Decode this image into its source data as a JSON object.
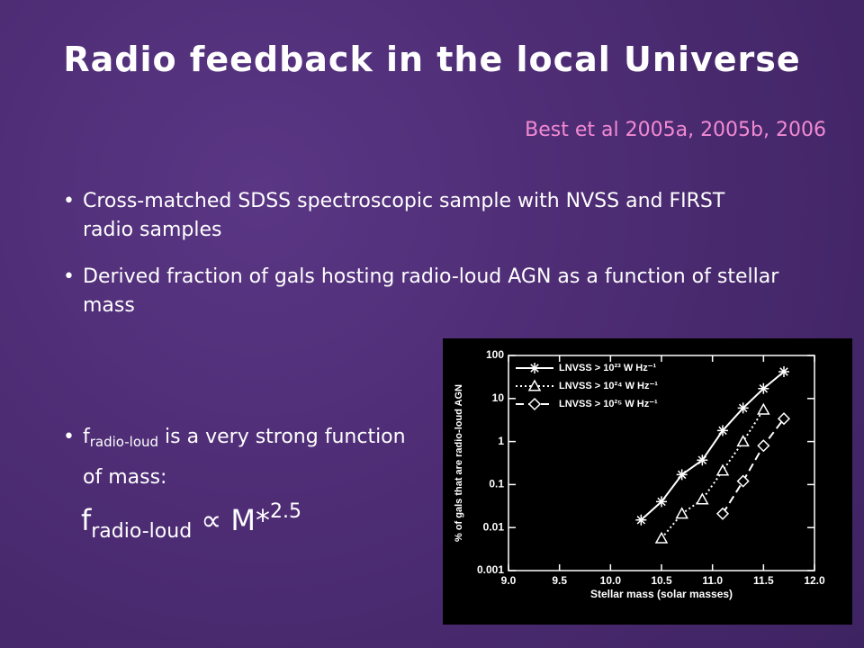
{
  "slide": {
    "title": "Radio feedback in the local Universe",
    "citation": "Best et al 2005a, 2005b, 2006",
    "bullets": [
      "Cross-matched SDSS spectroscopic sample with NVSS and FIRST radio samples",
      "Derived fraction of gals hosting radio-loud AGN as a function of stellar mass"
    ],
    "bullet3": {
      "symbol": "f",
      "subscript": "radio-loud",
      "text": "is a very strong function of mass:"
    },
    "formula": {
      "symbol": "f",
      "subscript": "radio-loud",
      "relation": "∝",
      "mass": "M",
      "star": "*",
      "exponent": "2.5"
    }
  },
  "chart_data": {
    "type": "line",
    "xlabel": "Stellar mass (solar masses)",
    "ylabel": "% of gals that are radio-loud AGN",
    "xlim": [
      9.0,
      12.0
    ],
    "xticks": [
      {
        "value": 9,
        "label": "9.0"
      },
      {
        "value": 9.5,
        "label": "9.5"
      },
      {
        "value": 10,
        "label": "10.0"
      },
      {
        "value": 10.5,
        "label": "10.5"
      },
      {
        "value": 11,
        "label": "11.0"
      },
      {
        "value": 11.5,
        "label": "11.5"
      },
      {
        "value": 12,
        "label": "12.0"
      }
    ],
    "ylim": [
      0.001,
      100
    ],
    "yticks": [
      0.001,
      0.01,
      0.1,
      1,
      10,
      100
    ],
    "log_y": true,
    "legend": "upper left",
    "color": "#ffffff",
    "series": [
      {
        "name": "LNVSS > 10²³ W Hz⁻¹",
        "marker": "asterisk",
        "dash": "solid",
        "x": [
          10.3,
          10.5,
          10.7,
          10.9,
          11.1,
          11.3,
          11.5,
          11.7
        ],
        "values": [
          0.015,
          0.04,
          0.17,
          0.37,
          1.8,
          6,
          17,
          42
        ]
      },
      {
        "name": "LNVSS > 10²⁴ W Hz⁻¹",
        "marker": "triangle",
        "dash": "dotted",
        "x": [
          10.5,
          10.7,
          10.9,
          11.1,
          11.3,
          11.5
        ],
        "values": [
          0.0056,
          0.021,
          0.045,
          0.21,
          1.0,
          5.5
        ]
      },
      {
        "name": "LNVSS > 10²⁵ W Hz⁻¹",
        "marker": "diamond",
        "dash": "dashed",
        "x": [
          11.1,
          11.3,
          11.5,
          11.7
        ],
        "values": [
          0.021,
          0.12,
          0.8,
          3.4
        ]
      }
    ]
  }
}
